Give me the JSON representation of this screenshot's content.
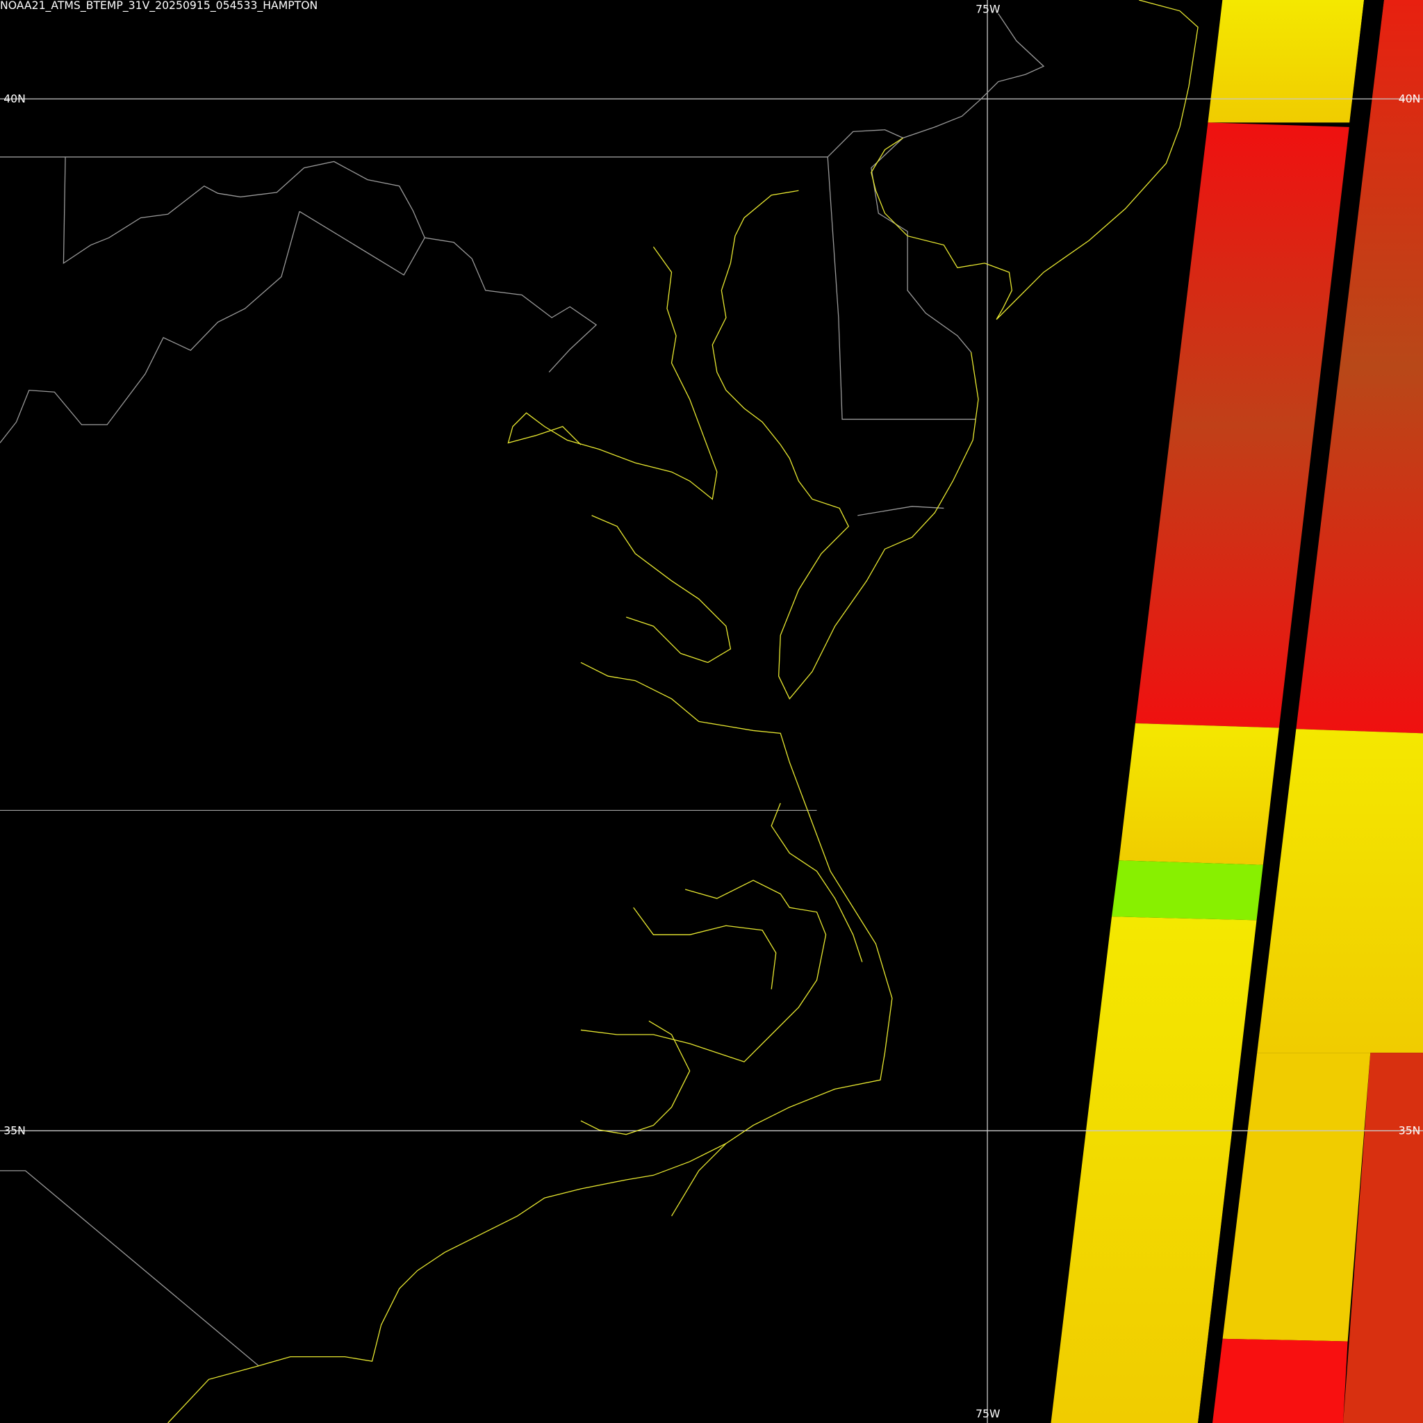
{
  "header": {
    "title": "NOAA21_ATMS_BTEMP_31V_20250915_054533_HAMPTON"
  },
  "grid_labels": [
    "75W",
    "75W",
    "40N",
    "40N",
    "35N",
    "35N"
  ]
}
